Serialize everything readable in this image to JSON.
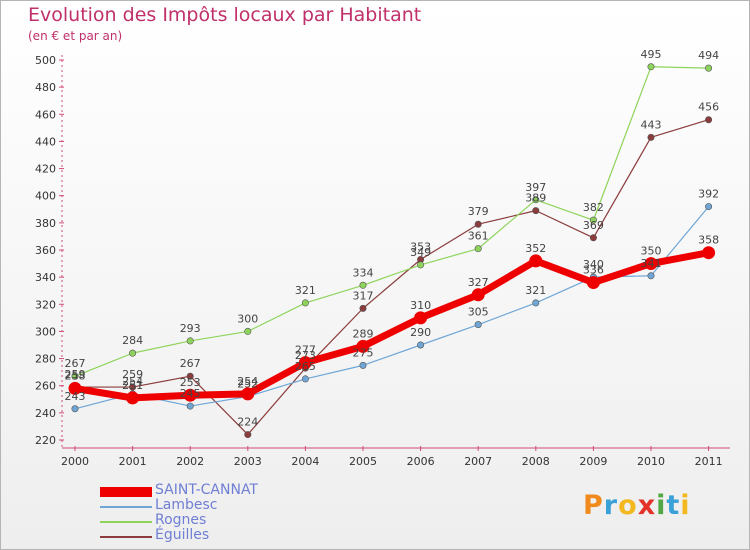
{
  "title": "Evolution des Impôts locaux par Habitant",
  "subtitle": "(en € et par an)",
  "logo": {
    "letters": [
      "P",
      "r",
      "o",
      "x",
      "i",
      "t",
      "i"
    ],
    "colors": [
      "#f08a1c",
      "#3aa0d8",
      "#f3b81f",
      "#e2322a",
      "#52a845",
      "#3aa0d8",
      "#f3b81f"
    ]
  },
  "chart_data": {
    "type": "line",
    "categories": [
      "2000",
      "2001",
      "2002",
      "2003",
      "2004",
      "2005",
      "2006",
      "2007",
      "2008",
      "2009",
      "2010",
      "2011"
    ],
    "ylim": [
      220,
      500
    ],
    "yticks": [
      "220",
      "240",
      "260",
      "280",
      "300",
      "320",
      "340",
      "360",
      "380",
      "400",
      "420",
      "440",
      "460",
      "480",
      "500"
    ],
    "grid": false,
    "legend_position": "bottom-left",
    "series": [
      {
        "name": "SAINT-CANNAT",
        "color": "#ee0000",
        "values": [
          258,
          251,
          253,
          254,
          277,
          289,
          310,
          327,
          352,
          336,
          350,
          358
        ],
        "labels": [
          "258",
          "251",
          "253",
          "254",
          "277",
          "289",
          "310",
          "327",
          "352",
          "336",
          "350",
          "358"
        ]
      },
      {
        "name": "Lambesc",
        "color": "#6fa6d6",
        "values": [
          243,
          254,
          245,
          252,
          265,
          275,
          290,
          305,
          321,
          340,
          341,
          392
        ],
        "labels": [
          "243",
          "254",
          "245",
          "252",
          "265",
          "275",
          "290",
          "305",
          "321",
          "340",
          "341",
          "392"
        ]
      },
      {
        "name": "Rognes",
        "color": "#8ed45c",
        "values": [
          267,
          284,
          293,
          300,
          321,
          334,
          349,
          361,
          397,
          382,
          495,
          494
        ],
        "labels": [
          "267",
          "284",
          "293",
          "300",
          "321",
          "334",
          "349",
          "361",
          "397",
          "382",
          "495",
          "494"
        ]
      },
      {
        "name": "Éguilles",
        "color": "#8b3c3c",
        "values": [
          259,
          259,
          267,
          224,
          273,
          317,
          353,
          379,
          389,
          369,
          443,
          456
        ],
        "labels": [
          "259",
          "259",
          "267",
          "224",
          "273",
          "317",
          "353",
          "379",
          "389",
          "369",
          "443",
          "456"
        ]
      }
    ]
  }
}
